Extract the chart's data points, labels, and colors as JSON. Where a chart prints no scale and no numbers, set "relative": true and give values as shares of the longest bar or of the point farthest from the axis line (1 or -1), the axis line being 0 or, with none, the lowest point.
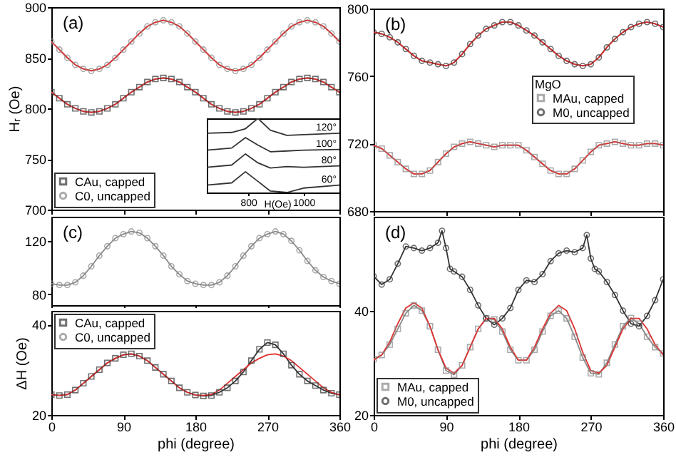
{
  "chart_data": [
    {
      "type": "line",
      "ylabel": "Hᵣ (Oe)",
      "x": [
        0,
        10,
        20,
        30,
        40,
        50,
        60,
        70,
        80,
        90,
        100,
        110,
        120,
        130,
        140,
        150,
        160,
        170,
        180,
        190,
        200,
        210,
        220,
        230,
        240,
        250,
        260,
        270,
        280,
        290,
        300,
        310,
        320,
        330,
        340,
        350,
        360
      ],
      "xlim": [
        0,
        360
      ],
      "xticks": [
        0,
        90,
        180,
        270,
        360
      ],
      "ylim": [
        700,
        900
      ],
      "yticks": [
        700,
        750,
        800,
        850,
        900
      ],
      "tick_labels": "y",
      "legend": "bottom left",
      "annotations": [
        "(a)"
      ],
      "series": [
        {
          "name": "CAu, capped",
          "color": "#333333",
          "marker": "square",
          "values": [
            816,
            810,
            804,
            800,
            797,
            796,
            797,
            800,
            804,
            810,
            816,
            821,
            826,
            829,
            830,
            829,
            826,
            821,
            816,
            810,
            804,
            800,
            797,
            796,
            797,
            800,
            804,
            810,
            816,
            821,
            826,
            829,
            830,
            829,
            826,
            821,
            816
          ]
        },
        {
          "name": "C0, uncapped",
          "color": "#888888",
          "marker": "circle",
          "values": [
            866,
            858,
            850,
            843,
            839,
            837,
            839,
            843,
            850,
            858,
            866,
            874,
            881,
            885,
            887,
            885,
            881,
            874,
            866,
            858,
            850,
            843,
            839,
            837,
            839,
            843,
            850,
            858,
            866,
            874,
            881,
            885,
            887,
            885,
            881,
            874,
            866
          ]
        },
        {
          "color": "#e03030",
          "marker": "none",
          "values": [
            816,
            810,
            804,
            800,
            797,
            796,
            797,
            800,
            804,
            810,
            816,
            821,
            826,
            829,
            830,
            829,
            826,
            821,
            816,
            810,
            804,
            800,
            797,
            796,
            797,
            800,
            804,
            810,
            816,
            821,
            826,
            829,
            830,
            829,
            826,
            821,
            816
          ]
        },
        {
          "color": "#e03030",
          "marker": "none",
          "values": [
            866,
            858,
            850,
            843,
            839,
            837,
            839,
            843,
            850,
            858,
            866,
            874,
            881,
            885,
            887,
            885,
            881,
            874,
            866,
            858,
            850,
            843,
            839,
            837,
            839,
            843,
            850,
            858,
            866,
            874,
            881,
            885,
            887,
            885,
            881,
            874,
            866
          ]
        }
      ]
    },
    {
      "type": "line",
      "relative": true,
      "xlabel": "H(Oe)",
      "x": [
        650,
        740,
        790,
        835,
        880,
        940,
        1000,
        1130
      ],
      "xlim": [
        650,
        1130
      ],
      "xticks": [
        800,
        1000
      ],
      "marker": "none",
      "series": [
        {
          "name": "120°",
          "color": "#333333",
          "values": [
            0.8,
            0.81,
            0.86,
            1.0,
            0.84,
            0.77,
            0.78,
            0.8
          ]
        },
        {
          "name": "100°",
          "color": "#333333",
          "values": [
            0.57,
            0.6,
            0.74,
            0.64,
            0.55,
            0.56,
            0.57,
            0.58
          ]
        },
        {
          "name": "80°",
          "color": "#333333",
          "values": [
            0.34,
            0.37,
            0.52,
            0.4,
            0.33,
            0.35,
            0.34,
            0.36
          ]
        },
        {
          "name": "60°",
          "color": "#333333",
          "values": [
            0.1,
            0.13,
            0.28,
            0.15,
            0.02,
            0,
            0.06,
            0.1
          ]
        }
      ]
    },
    {
      "type": "line",
      "x": [
        0,
        10,
        20,
        30,
        40,
        50,
        60,
        70,
        80,
        90,
        100,
        110,
        120,
        130,
        140,
        150,
        160,
        170,
        180,
        190,
        200,
        210,
        220,
        230,
        240,
        250,
        260,
        270,
        280,
        290,
        300,
        310,
        320,
        330,
        340,
        350,
        360
      ],
      "xlim": [
        0,
        360
      ],
      "xticks": [
        0,
        90,
        180,
        270,
        360
      ],
      "ylim": [
        680,
        800
      ],
      "yticks": [
        680,
        720,
        760,
        800
      ],
      "tick_labels": "y",
      "legend": "right",
      "legend_title": "MgO",
      "annotations": [
        "(b)"
      ],
      "series": [
        {
          "name": "MAu, capped",
          "color": "#888888",
          "marker": "square",
          "values": [
            719,
            717,
            713,
            709,
            705,
            702,
            702,
            704,
            709,
            714,
            718,
            720,
            721,
            720,
            719,
            718,
            719,
            719,
            719,
            716,
            712,
            708,
            704,
            702,
            702,
            705,
            710,
            715,
            719,
            720,
            721,
            720,
            719,
            719,
            720,
            720,
            719
          ]
        },
        {
          "name": "M0, uncapped",
          "color": "#333333",
          "marker": "circle",
          "values": [
            786,
            785,
            783,
            780,
            776,
            772,
            769,
            768,
            767,
            766,
            768,
            773,
            779,
            784,
            788,
            790,
            792,
            792,
            790,
            787,
            784,
            780,
            776,
            772,
            769,
            767,
            766,
            767,
            771,
            777,
            782,
            786,
            789,
            791,
            792,
            791,
            789
          ]
        },
        {
          "color": "#e03030",
          "marker": "none",
          "values": [
            719,
            717,
            713,
            709,
            705,
            702,
            702,
            704,
            709,
            714,
            718,
            720,
            721,
            720,
            719,
            718,
            719,
            719,
            719,
            716,
            712,
            708,
            704,
            702,
            702,
            705,
            710,
            715,
            719,
            720,
            721,
            720,
            719,
            719,
            720,
            720,
            719
          ]
        },
        {
          "color": "#e03030",
          "marker": "none",
          "values": [
            786,
            785,
            783,
            780,
            776,
            772,
            769,
            768,
            767,
            766,
            768,
            773,
            779,
            784,
            788,
            790,
            792,
            792,
            790,
            787,
            784,
            780,
            776,
            772,
            769,
            767,
            766,
            767,
            771,
            777,
            782,
            786,
            789,
            791,
            792,
            791,
            789
          ]
        }
      ]
    },
    {
      "type": "line",
      "x": [
        0,
        10,
        20,
        30,
        40,
        50,
        60,
        70,
        80,
        90,
        100,
        110,
        120,
        130,
        140,
        150,
        160,
        170,
        180,
        190,
        200,
        210,
        220,
        230,
        240,
        250,
        260,
        270,
        280,
        290,
        300,
        310,
        320,
        330,
        340,
        350,
        360
      ],
      "xlim": [
        0,
        360
      ],
      "xticks": [
        0,
        90,
        180,
        270,
        360
      ],
      "ylim": [
        72,
        138
      ],
      "yticks": [
        80,
        120
      ],
      "tick_labels": "y",
      "annotations": [
        "(c)"
      ],
      "series": [
        {
          "color": "#888888",
          "marker": "circle",
          "values": [
            88,
            87,
            87,
            89,
            94,
            101,
            109,
            116,
            122,
            125,
            127,
            126,
            122,
            116,
            109,
            101,
            95,
            90,
            88,
            87,
            87,
            89,
            94,
            101,
            109,
            116,
            122,
            125,
            127,
            125,
            120,
            113,
            105,
            98,
            93,
            90,
            88
          ]
        }
      ]
    },
    {
      "type": "line",
      "ylabel": "ΔH (Oe)",
      "xlabel": "phi (degree)",
      "x": [
        0,
        10,
        20,
        30,
        40,
        50,
        60,
        70,
        80,
        90,
        100,
        110,
        120,
        130,
        140,
        150,
        160,
        170,
        180,
        190,
        200,
        210,
        220,
        230,
        240,
        250,
        260,
        270,
        280,
        290,
        300,
        310,
        320,
        330,
        340,
        350,
        360
      ],
      "xlim": [
        0,
        360
      ],
      "xticks": [
        0,
        90,
        180,
        270,
        360
      ],
      "ylim": [
        20,
        43
      ],
      "yticks": [
        20,
        40
      ],
      "legend": "top left",
      "series": [
        {
          "name": "CAu, capped",
          "color": "#333333",
          "marker": "square",
          "values": [
            24.5,
            24.3,
            24.5,
            25.5,
            27,
            28.5,
            30,
            31.5,
            32.5,
            33.3,
            33.5,
            33,
            32,
            30.5,
            29,
            27.5,
            26,
            25,
            24.4,
            24.2,
            24.3,
            25,
            26,
            27.5,
            29.5,
            32,
            34.5,
            36,
            35.5,
            33.5,
            31,
            29,
            27.5,
            26.5,
            25.5,
            24.8,
            24.5
          ]
        },
        {
          "name": "C0, uncapped",
          "color": "#888888",
          "marker": "circle",
          "values": [
            null,
            null,
            null,
            null,
            null,
            null,
            null,
            null,
            null,
            null,
            null,
            null,
            null,
            null,
            null,
            null,
            null,
            null,
            null,
            null,
            null,
            null,
            null,
            null,
            null,
            null,
            null,
            null,
            null,
            null,
            null,
            null,
            null,
            null,
            null,
            null,
            null
          ]
        },
        {
          "color": "#e03030",
          "marker": "none",
          "values": [
            24.5,
            24.3,
            24.5,
            25.5,
            27,
            28.5,
            30,
            31.5,
            32.5,
            33.3,
            33.5,
            33,
            32,
            30.5,
            29,
            27.5,
            26,
            25,
            24.4,
            24.3,
            24.5,
            25.5,
            27,
            28.5,
            30,
            31.5,
            32.5,
            33.3,
            33.5,
            33,
            32,
            30.5,
            29,
            27.5,
            26,
            25,
            24.4
          ]
        }
      ]
    },
    {
      "type": "line",
      "xlabel": "phi (degree)",
      "x": [
        0,
        10,
        20,
        30,
        40,
        50,
        60,
        70,
        80,
        90,
        100,
        110,
        120,
        130,
        140,
        150,
        160,
        170,
        180,
        190,
        200,
        210,
        220,
        230,
        240,
        250,
        260,
        270,
        280,
        290,
        300,
        310,
        320,
        330,
        340,
        350,
        360
      ],
      "xlim": [
        0,
        360
      ],
      "xticks": [
        0,
        90,
        180,
        270,
        360
      ],
      "ylim": [
        20,
        58
      ],
      "yticks": [
        20,
        40
      ],
      "legend": "bottom left",
      "annotations": [
        "(d)"
      ],
      "series": [
        {
          "name": "MAu, capped",
          "color": "#888888",
          "marker": "square",
          "values": [
            30.7,
            31.5,
            33.5,
            36.5,
            39.5,
            41,
            40,
            37,
            32.5,
            28.5,
            27.7,
            29.5,
            33,
            36.5,
            38.5,
            38.3,
            36,
            32.5,
            30.5,
            30.5,
            32.5,
            36,
            39,
            40,
            38.5,
            35,
            31,
            28,
            27.8,
            30,
            33.5,
            37,
            38.6,
            37.5,
            35,
            33,
            31.8
          ]
        },
        {
          "name": "M0, uncapped",
          "color": "#333333",
          "marker": "circle",
          "x": [
            0,
            10,
            20,
            30,
            40,
            50,
            60,
            70,
            80,
            85,
            90,
            95,
            100,
            110,
            120,
            130,
            140,
            150,
            160,
            170,
            180,
            190,
            200,
            210,
            220,
            230,
            240,
            250,
            260,
            265,
            270,
            275,
            280,
            290,
            300,
            310,
            320,
            330,
            340,
            350,
            360
          ],
          "values": [
            46.6,
            45,
            46,
            49,
            52.3,
            52,
            51.5,
            52,
            53,
            55.3,
            52,
            48,
            47.5,
            46.5,
            44,
            41,
            38.5,
            37.3,
            38.5,
            40.5,
            44,
            45.8,
            45.5,
            47,
            49.5,
            51,
            51.5,
            51.2,
            52,
            54.5,
            50,
            48,
            47.5,
            45.5,
            43,
            40,
            37.5,
            37,
            39,
            42,
            46
          ]
        },
        {
          "color": "#e03030",
          "marker": "none",
          "values": [
            30.5,
            31.5,
            34,
            37.5,
            40.5,
            41.5,
            40.5,
            37,
            32.5,
            29,
            28,
            29.5,
            33,
            36.5,
            38.5,
            38.5,
            36.5,
            33,
            30.5,
            30.5,
            33,
            36.5,
            39.5,
            41,
            40,
            36.5,
            32,
            28.5,
            28,
            29.5,
            33,
            36.5,
            38.5,
            38.5,
            36.5,
            33.5,
            31.5
          ]
        }
      ]
    }
  ]
}
